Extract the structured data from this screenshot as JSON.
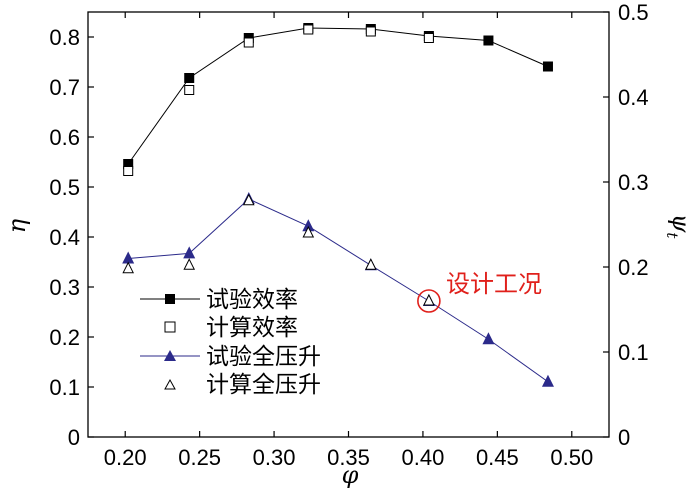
{
  "chart_data": {
    "type": "line",
    "xlabel": "φ",
    "ylabel_left": "η",
    "ylabel_right": "ψ",
    "ylabel_right_sub": "t",
    "xlim": [
      0.175,
      0.525
    ],
    "ylim_left": [
      0,
      0.85
    ],
    "ylim_right": [
      0,
      0.5
    ],
    "x_ticks": [
      0.2,
      0.25,
      0.3,
      0.35,
      0.4,
      0.45,
      0.5
    ],
    "x_tick_labels": [
      "0.20",
      "0.25",
      "0.30",
      "0.35",
      "0.40",
      "0.45",
      "0.50"
    ],
    "y_left_ticks": [
      0,
      0.1,
      0.2,
      0.3,
      0.4,
      0.5,
      0.6,
      0.7,
      0.8
    ],
    "y_left_tick_labels": [
      "0",
      "0.1",
      "0.2",
      "0.3",
      "0.4",
      "0.5",
      "0.6",
      "0.7",
      "0.8"
    ],
    "y_right_ticks": [
      0,
      0.1,
      0.2,
      0.3,
      0.4,
      0.5
    ],
    "y_right_tick_labels": [
      "0",
      "0.1",
      "0.2",
      "0.3",
      "0.4",
      "0.5"
    ],
    "grid": false,
    "legend_position": "bottom-left",
    "series": [
      {
        "name": "试验效率",
        "axis": "left",
        "marker": "filled-square",
        "line": true,
        "color": "#000000",
        "x": [
          0.202,
          0.243,
          0.283,
          0.323,
          0.365,
          0.404,
          0.444,
          0.484
        ],
        "y": [
          0.546,
          0.718,
          0.798,
          0.818,
          0.816,
          0.802,
          0.793,
          0.741
        ]
      },
      {
        "name": "计算效率",
        "axis": "left",
        "marker": "open-square",
        "line": false,
        "color": "#000000",
        "x": [
          0.202,
          0.243,
          0.283,
          0.323,
          0.365,
          0.404
        ],
        "y": [
          0.532,
          0.694,
          0.789,
          0.815,
          0.811,
          0.798
        ]
      },
      {
        "name": "试验全压升",
        "axis": "right",
        "marker": "filled-triangle",
        "line": true,
        "color": "#2b2a8a",
        "x": [
          0.202,
          0.243,
          0.283,
          0.323,
          0.365,
          0.404,
          0.444,
          0.484
        ],
        "y": [
          0.21,
          0.216,
          0.28,
          0.248,
          0.202,
          0.16,
          0.115,
          0.065
        ]
      },
      {
        "name": "计算全压升",
        "axis": "right",
        "marker": "open-triangle",
        "line": false,
        "color": "#000000",
        "x": [
          0.202,
          0.243,
          0.283,
          0.323,
          0.365,
          0.404
        ],
        "y": [
          0.198,
          0.202,
          0.278,
          0.24,
          0.202,
          0.16
        ]
      }
    ],
    "annotation": {
      "text": "设计工况",
      "x": 0.404,
      "y": 0.16,
      "axis": "right",
      "color": "#e0201b"
    }
  }
}
